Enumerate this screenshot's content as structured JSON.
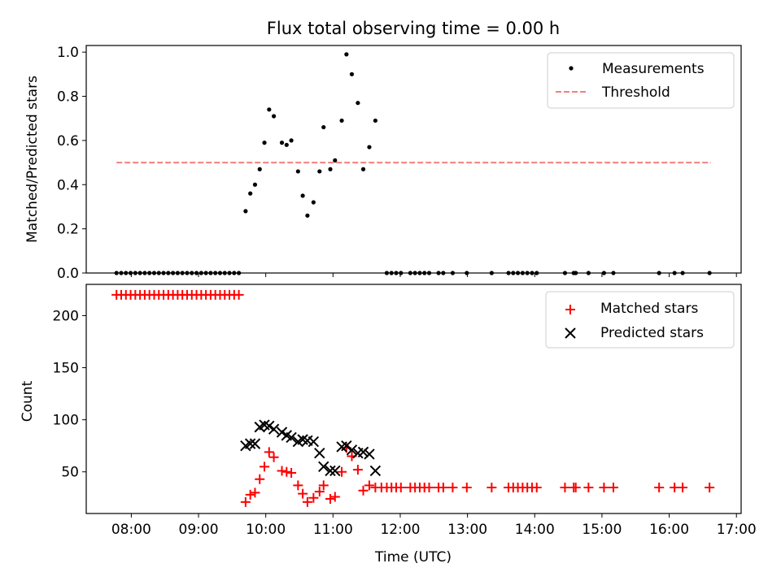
{
  "chart_data": {
    "type": "scatter",
    "title": "Flux total observing time = 0.00 h",
    "xlabel": "Time (UTC)",
    "xlim": [
      7.33,
      17.07
    ],
    "xticks": [
      8,
      9,
      10,
      11,
      12,
      13,
      14,
      15,
      16,
      17
    ],
    "xtick_labels": [
      "08:00",
      "09:00",
      "10:00",
      "11:00",
      "12:00",
      "13:00",
      "14:00",
      "15:00",
      "16:00",
      "17:00"
    ],
    "top": {
      "ylabel": "Matched/Predicted stars",
      "ylim": [
        0,
        1.03
      ],
      "yticks": [
        0.0,
        0.2,
        0.4,
        0.6,
        0.8,
        1.0
      ],
      "ytick_labels": [
        "0.0",
        "0.2",
        "0.4",
        "0.6",
        "0.8",
        "1.0"
      ],
      "legend": [
        "Measurements",
        "Threshold"
      ],
      "threshold": {
        "value": 0.5,
        "x_start": 7.78,
        "x_end": 16.62
      },
      "measurements": [
        [
          7.78,
          0
        ],
        [
          7.85,
          0
        ],
        [
          7.92,
          0
        ],
        [
          7.99,
          0
        ],
        [
          8.06,
          0
        ],
        [
          8.13,
          0
        ],
        [
          8.2,
          0
        ],
        [
          8.27,
          0
        ],
        [
          8.34,
          0
        ],
        [
          8.41,
          0
        ],
        [
          8.48,
          0
        ],
        [
          8.55,
          0
        ],
        [
          8.62,
          0
        ],
        [
          8.69,
          0
        ],
        [
          8.76,
          0
        ],
        [
          8.83,
          0
        ],
        [
          8.9,
          0
        ],
        [
          8.97,
          0
        ],
        [
          9.04,
          0
        ],
        [
          9.11,
          0
        ],
        [
          9.18,
          0
        ],
        [
          9.25,
          0
        ],
        [
          9.32,
          0
        ],
        [
          9.39,
          0
        ],
        [
          9.46,
          0
        ],
        [
          9.53,
          0
        ],
        [
          9.6,
          0
        ],
        [
          9.7,
          0.28
        ],
        [
          9.77,
          0.36
        ],
        [
          9.84,
          0.4
        ],
        [
          9.91,
          0.47
        ],
        [
          9.98,
          0.59
        ],
        [
          10.05,
          0.74
        ],
        [
          10.12,
          0.71
        ],
        [
          10.24,
          0.59
        ],
        [
          10.31,
          0.58
        ],
        [
          10.38,
          0.6
        ],
        [
          10.48,
          0.46
        ],
        [
          10.55,
          0.35
        ],
        [
          10.62,
          0.26
        ],
        [
          10.71,
          0.32
        ],
        [
          10.8,
          0.46
        ],
        [
          10.86,
          0.66
        ],
        [
          10.96,
          0.47
        ],
        [
          11.03,
          0.51
        ],
        [
          11.13,
          0.69
        ],
        [
          11.2,
          0.99
        ],
        [
          11.28,
          0.9
        ],
        [
          11.37,
          0.77
        ],
        [
          11.45,
          0.47
        ],
        [
          11.54,
          0.57
        ],
        [
          11.63,
          0.69
        ],
        [
          11.8,
          0
        ],
        [
          11.87,
          0
        ],
        [
          11.94,
          0
        ],
        [
          12.01,
          0
        ],
        [
          12.15,
          0
        ],
        [
          12.22,
          0
        ],
        [
          12.29,
          0
        ],
        [
          12.36,
          0
        ],
        [
          12.43,
          0
        ],
        [
          12.57,
          0
        ],
        [
          12.64,
          0
        ],
        [
          12.78,
          0
        ],
        [
          12.99,
          0
        ],
        [
          13.36,
          0
        ],
        [
          13.61,
          0
        ],
        [
          13.68,
          0
        ],
        [
          13.75,
          0
        ],
        [
          13.82,
          0
        ],
        [
          13.89,
          0
        ],
        [
          13.96,
          0
        ],
        [
          14.03,
          0
        ],
        [
          14.45,
          0
        ],
        [
          14.58,
          0
        ],
        [
          14.61,
          0
        ],
        [
          14.8,
          0
        ],
        [
          15.03,
          0
        ],
        [
          15.17,
          0
        ],
        [
          15.85,
          0
        ],
        [
          16.08,
          0
        ],
        [
          16.2,
          0
        ],
        [
          16.6,
          0
        ]
      ]
    },
    "bottom": {
      "ylabel": "Count",
      "ylim": [
        10,
        230
      ],
      "yticks": [
        50,
        100,
        150,
        200
      ],
      "ytick_labels": [
        "50",
        "100",
        "150",
        "200"
      ],
      "series": [
        {
          "name": "Matched stars",
          "marker": "plus",
          "color": "#ff0000",
          "points": [
            [
              7.78,
              220
            ],
            [
              7.85,
              220
            ],
            [
              7.92,
              220
            ],
            [
              7.99,
              220
            ],
            [
              8.06,
              220
            ],
            [
              8.13,
              220
            ],
            [
              8.2,
              220
            ],
            [
              8.27,
              220
            ],
            [
              8.34,
              220
            ],
            [
              8.41,
              220
            ],
            [
              8.48,
              220
            ],
            [
              8.55,
              220
            ],
            [
              8.62,
              220
            ],
            [
              8.69,
              220
            ],
            [
              8.76,
              220
            ],
            [
              8.83,
              220
            ],
            [
              8.9,
              220
            ],
            [
              8.97,
              220
            ],
            [
              9.04,
              220
            ],
            [
              9.11,
              220
            ],
            [
              9.18,
              220
            ],
            [
              9.25,
              220
            ],
            [
              9.32,
              220
            ],
            [
              9.39,
              220
            ],
            [
              9.46,
              220
            ],
            [
              9.53,
              220
            ],
            [
              9.6,
              220
            ],
            [
              9.7,
              21
            ],
            [
              9.77,
              28
            ],
            [
              9.84,
              30
            ],
            [
              9.91,
              43
            ],
            [
              9.98,
              55
            ],
            [
              10.05,
              69
            ],
            [
              10.12,
              64
            ],
            [
              10.24,
              51
            ],
            [
              10.31,
              50
            ],
            [
              10.38,
              49
            ],
            [
              10.48,
              37
            ],
            [
              10.55,
              29
            ],
            [
              10.62,
              21
            ],
            [
              10.71,
              25
            ],
            [
              10.8,
              31
            ],
            [
              10.86,
              37
            ],
            [
              10.96,
              24
            ],
            [
              11.03,
              26
            ],
            [
              11.13,
              50
            ],
            [
              11.2,
              73
            ],
            [
              11.28,
              65
            ],
            [
              11.37,
              52
            ],
            [
              11.45,
              32
            ],
            [
              11.54,
              37
            ],
            [
              11.63,
              35
            ],
            [
              11.72,
              35
            ],
            [
              11.8,
              35
            ],
            [
              11.87,
              35
            ],
            [
              11.94,
              35
            ],
            [
              12.01,
              35
            ],
            [
              12.15,
              35
            ],
            [
              12.22,
              35
            ],
            [
              12.29,
              35
            ],
            [
              12.36,
              35
            ],
            [
              12.43,
              35
            ],
            [
              12.57,
              35
            ],
            [
              12.64,
              35
            ],
            [
              12.78,
              35
            ],
            [
              12.99,
              35
            ],
            [
              13.36,
              35
            ],
            [
              13.61,
              35
            ],
            [
              13.68,
              35
            ],
            [
              13.75,
              35
            ],
            [
              13.82,
              35
            ],
            [
              13.89,
              35
            ],
            [
              13.96,
              35
            ],
            [
              14.03,
              35
            ],
            [
              14.45,
              35
            ],
            [
              14.58,
              35
            ],
            [
              14.61,
              35
            ],
            [
              14.8,
              35
            ],
            [
              15.03,
              35
            ],
            [
              15.17,
              35
            ],
            [
              15.85,
              35
            ],
            [
              16.08,
              35
            ],
            [
              16.2,
              35
            ],
            [
              16.6,
              35
            ]
          ]
        },
        {
          "name": "Predicted stars",
          "marker": "x",
          "color": "#000000",
          "points": [
            [
              9.7,
              75
            ],
            [
              9.77,
              77
            ],
            [
              9.84,
              77
            ],
            [
              9.91,
              93
            ],
            [
              9.98,
              95
            ],
            [
              10.05,
              94
            ],
            [
              10.12,
              91
            ],
            [
              10.24,
              88
            ],
            [
              10.31,
              85
            ],
            [
              10.38,
              83
            ],
            [
              10.48,
              79
            ],
            [
              10.55,
              81
            ],
            [
              10.62,
              80
            ],
            [
              10.71,
              79
            ],
            [
              10.8,
              68
            ],
            [
              10.86,
              55
            ],
            [
              10.96,
              51
            ],
            [
              11.03,
              51
            ],
            [
              11.13,
              74
            ],
            [
              11.2,
              75
            ],
            [
              11.28,
              71
            ],
            [
              11.37,
              68
            ],
            [
              11.45,
              69
            ],
            [
              11.54,
              67
            ],
            [
              11.63,
              51
            ]
          ]
        }
      ]
    }
  }
}
